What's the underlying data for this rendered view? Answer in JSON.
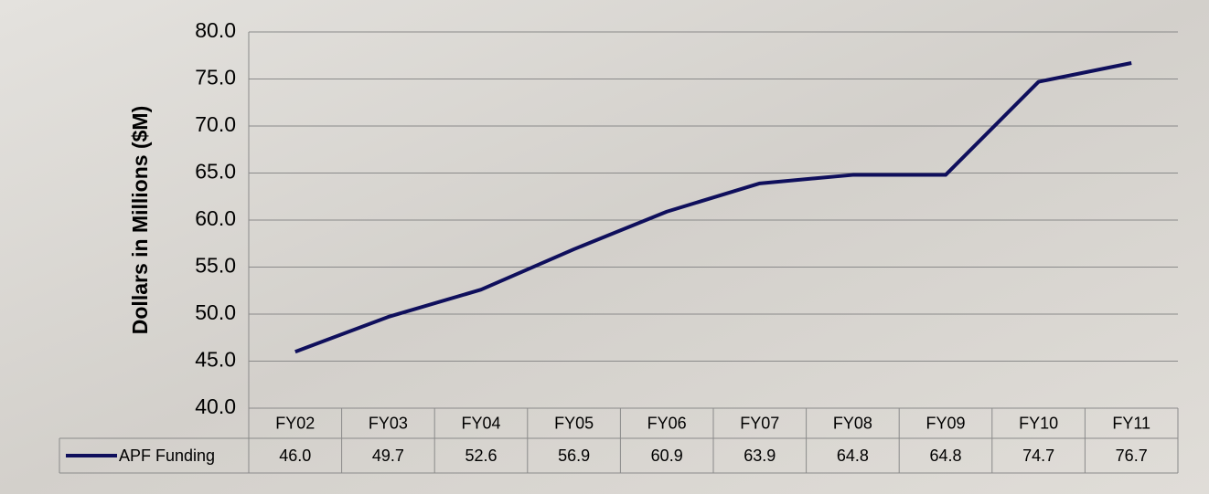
{
  "chart_data": {
    "type": "line",
    "y_label": "Dollars in Millions ($M)",
    "categories": [
      "FY02",
      "FY03",
      "FY04",
      "FY05",
      "FY06",
      "FY07",
      "FY08",
      "FY09",
      "FY10",
      "FY11"
    ],
    "series": [
      {
        "name": "APF Funding",
        "color": "#0f0f5c",
        "values": [
          46.0,
          49.7,
          52.6,
          56.9,
          60.9,
          63.9,
          64.8,
          64.8,
          74.7,
          76.7
        ],
        "value_labels": [
          "46.0",
          "49.7",
          "52.6",
          "56.9",
          "60.9",
          "63.9",
          "64.8",
          "64.8",
          "74.7",
          "76.7"
        ]
      }
    ],
    "ylim": [
      40,
      80
    ],
    "yticks": [
      {
        "value": 40,
        "label": "40.0"
      },
      {
        "value": 45,
        "label": "45.0"
      },
      {
        "value": 50,
        "label": "50.0"
      },
      {
        "value": 55,
        "label": "55.0"
      },
      {
        "value": 60,
        "label": "60.0"
      },
      {
        "value": 65,
        "label": "65.0"
      },
      {
        "value": 70,
        "label": "70.0"
      },
      {
        "value": 75,
        "label": "75.0"
      },
      {
        "value": 80,
        "label": "80.0"
      }
    ],
    "grid": true
  }
}
